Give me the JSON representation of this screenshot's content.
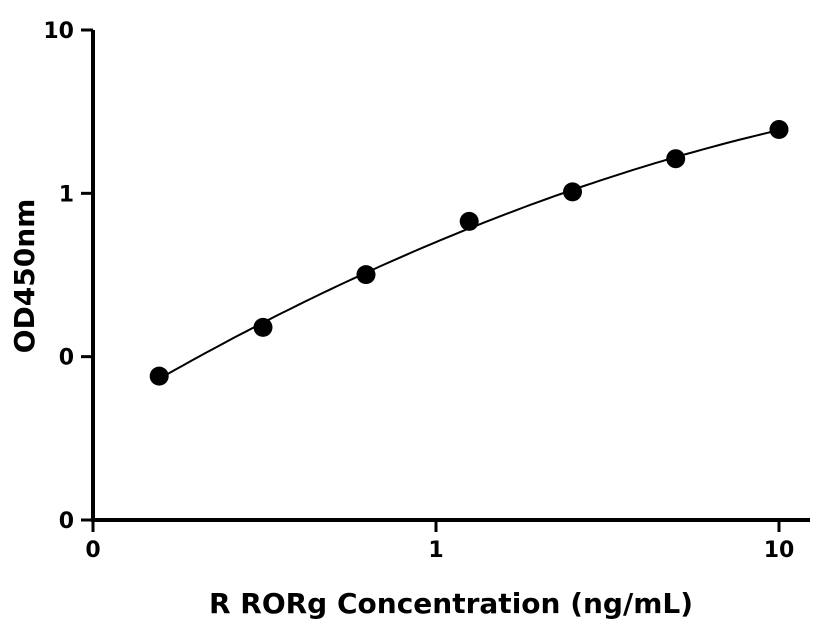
{
  "chart_data": {
    "type": "scatter",
    "title": "",
    "xlabel": "R RORg Concentration (ng/mL)",
    "ylabel": "OD450nm",
    "x_scale": "log",
    "y_scale": "log",
    "xlim": [
      0.1,
      20
    ],
    "ylim": [
      0.01,
      10
    ],
    "x_ticks": [
      {
        "value": 0.1,
        "label": "0"
      },
      {
        "value": 1,
        "label": "1"
      },
      {
        "value": 10,
        "label": "10"
      }
    ],
    "y_ticks": [
      {
        "value": 0.01,
        "label": "0"
      },
      {
        "value": 0.1,
        "label": "0"
      },
      {
        "value": 1,
        "label": "1"
      },
      {
        "value": 10,
        "label": "10"
      }
    ],
    "grid": false,
    "legend": "none",
    "series": [
      {
        "x": [
          0.156,
          0.313,
          0.625,
          1.25,
          2.5,
          5,
          10
        ],
        "y": [
          0.076,
          0.151,
          0.318,
          0.673,
          1.02,
          1.63,
          2.46
        ],
        "marker": "filled-circle",
        "color": "#000000"
      }
    ],
    "fit_curve": {
      "type": "power",
      "x_range": [
        0.156,
        10
      ],
      "color": "#000000"
    }
  }
}
